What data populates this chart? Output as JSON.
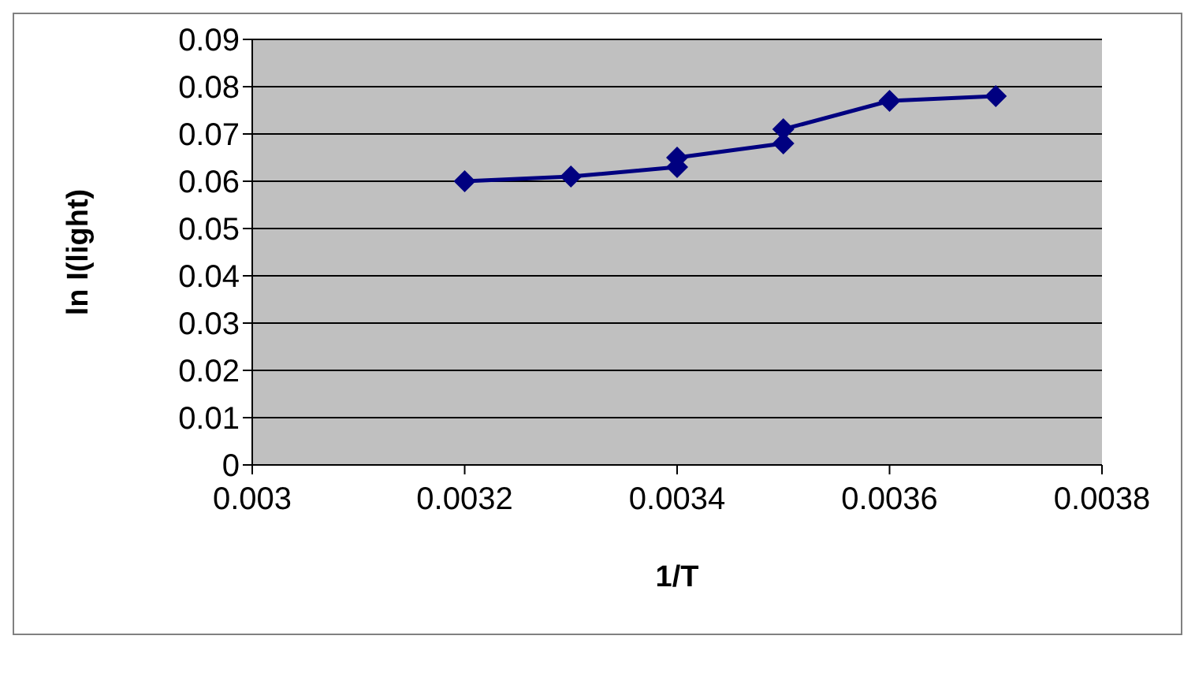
{
  "chart_data": {
    "type": "line",
    "xlabel": "1/T",
    "ylabel": "ln I(light)",
    "series": [
      {
        "color": "#000080",
        "x": [
          0.0032,
          0.0033,
          0.0034,
          0.0034,
          0.0035,
          0.0035,
          0.0036,
          0.0037
        ],
        "values": [
          0.06,
          0.061,
          0.063,
          0.065,
          0.068,
          0.071,
          0.077,
          0.078
        ]
      }
    ],
    "xlim": [
      0.003,
      0.0038
    ],
    "xticks": [
      0.003,
      0.0032,
      0.0034,
      0.0036,
      0.0038
    ],
    "ylim": [
      0,
      0.09
    ],
    "yticks": [
      0,
      0.01,
      0.02,
      0.03,
      0.04,
      0.05,
      0.06,
      0.07,
      0.08,
      0.09
    ],
    "grid": "y",
    "marker": "diamond",
    "line_style": "solid",
    "legend": false
  }
}
